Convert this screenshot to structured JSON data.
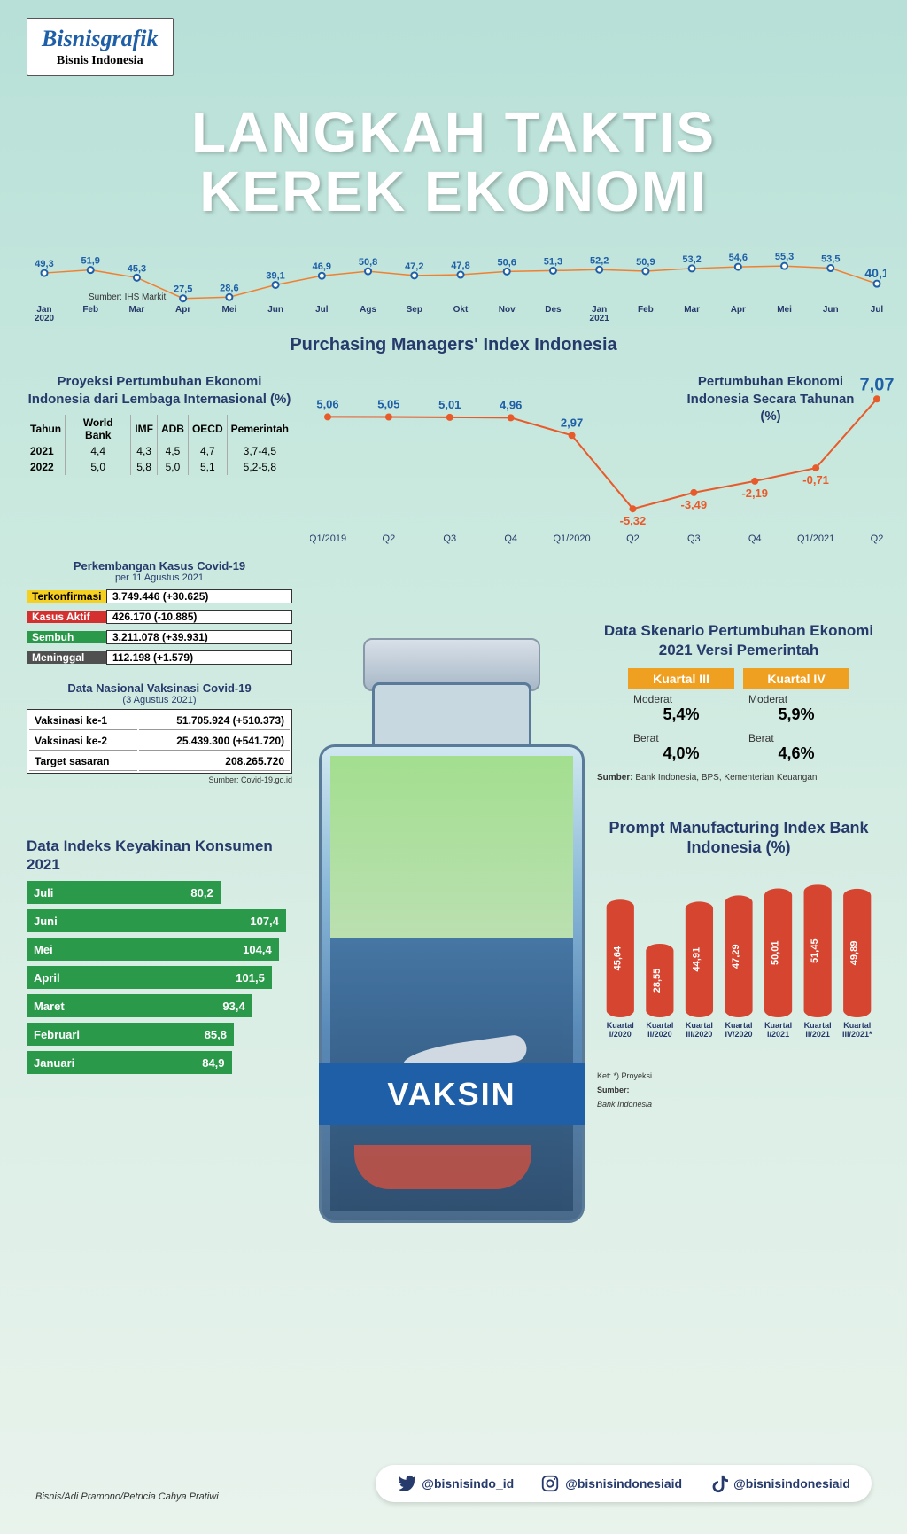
{
  "logo": {
    "brand": "Bisnisgrafik",
    "sub": "Bisnis Indonesia"
  },
  "title": {
    "line1": "LANGKAH TAKTIS",
    "line2": "KEREK EKONOMI"
  },
  "pmi": {
    "title": "Purchasing Managers' Index Indonesia",
    "source": "Sumber: IHS Markit",
    "labels": [
      "Jan\n2020",
      "Feb",
      "Mar",
      "Apr",
      "Mei",
      "Jun",
      "Jul",
      "Ags",
      "Sep",
      "Okt",
      "Nov",
      "Des",
      "Jan\n2021",
      "Feb",
      "Mar",
      "Apr",
      "Mei",
      "Jun",
      "Jul"
    ],
    "values": [
      49.3,
      51.9,
      45.3,
      27.5,
      28.6,
      39.1,
      46.9,
      50.8,
      47.2,
      47.8,
      50.6,
      51.3,
      52.2,
      50.9,
      53.2,
      54.6,
      55.3,
      53.5,
      40.1
    ],
    "line_color": "#f08030",
    "point_color": "#1e5fa8",
    "value_color": "#1e5fa8",
    "last_bold_color": "#1e5fa8",
    "value_fontsize": 11,
    "label_fontsize": 10,
    "ymin": 25,
    "ymax": 60
  },
  "proj": {
    "title": "Proyeksi Pertumbuhan Ekonomi Indonesia dari Lembaga Internasional (%)",
    "headers": [
      "Tahun",
      "World Bank",
      "IMF",
      "ADB",
      "OECD",
      "Pemerintah"
    ],
    "rows": [
      [
        "2021",
        "4,4",
        "4,3",
        "4,5",
        "4,7",
        "3,7-4,5"
      ],
      [
        "2022",
        "5,0",
        "5,8",
        "5,0",
        "5,1",
        "5,2-5,8"
      ]
    ]
  },
  "growth": {
    "title": "Pertumbuhan Ekonomi Indonesia Secara Tahunan (%)",
    "labels": [
      "Q1/2019",
      "Q2",
      "Q3",
      "Q4",
      "Q1/2020",
      "Q2",
      "Q3",
      "Q4",
      "Q1/2021",
      "Q2"
    ],
    "values": [
      5.06,
      5.05,
      5.01,
      4.96,
      2.97,
      -5.32,
      -3.49,
      -2.19,
      -0.71,
      7.07
    ],
    "line_color": "#e85a2a",
    "point_color": "#e85a2a",
    "pos_color": "#1e5fa8",
    "neg_color": "#e85a2a",
    "value_fontsize": 13,
    "label_fontsize": 11,
    "ymin": -7,
    "ymax": 8
  },
  "covid": {
    "title": "Perkembangan Kasus Covid-19",
    "sub": "per 11 Agustus 2021",
    "rows": [
      {
        "label": "Terkonfirmasi",
        "value": "3.749.446 (+30.625)",
        "color": "#f5d020",
        "text": "#000"
      },
      {
        "label": "Kasus Aktif",
        "value": "426.170 (-10.885)",
        "color": "#d43030",
        "text": "#fff"
      },
      {
        "label": "Sembuh",
        "value": "3.211.078 (+39.931)",
        "color": "#2a9a4a",
        "text": "#fff"
      },
      {
        "label": "Meninggal",
        "value": "112.198 (+1.579)",
        "color": "#505050",
        "text": "#fff"
      }
    ]
  },
  "vax": {
    "title": "Data Nasional Vaksinasi Covid-19",
    "sub": "(3 Agustus 2021)",
    "source": "Sumber: Covid-19.go.id",
    "rows": [
      [
        "Vaksinasi ke-1",
        "51.705.924 (+510.373)"
      ],
      [
        "Vaksinasi ke-2",
        "25.439.300 (+541.720)"
      ],
      [
        "Target sasaran",
        "208.265.720"
      ]
    ]
  },
  "ikk": {
    "title": "Data Indeks Keyakinan Konsumen 2021",
    "color": "#2a9a4a",
    "max": 110,
    "value_fontsize": 13,
    "rows": [
      {
        "label": "Juli",
        "value": 80.2,
        "disp": "80,2"
      },
      {
        "label": "Juni",
        "value": 107.4,
        "disp": "107,4"
      },
      {
        "label": "Mei",
        "value": 104.4,
        "disp": "104,4"
      },
      {
        "label": "April",
        "value": 101.5,
        "disp": "101,5"
      },
      {
        "label": "Maret",
        "value": 93.4,
        "disp": "93,4"
      },
      {
        "label": "Februari",
        "value": 85.8,
        "disp": "85,8"
      },
      {
        "label": "Januari",
        "value": 84.9,
        "disp": "84,9"
      }
    ]
  },
  "scenario": {
    "title": "Data Skenario Pertumbuhan Ekonomi 2021 Versi Pemerintah",
    "cols": [
      {
        "head": "Kuartal III",
        "moderat": "5,4%",
        "berat": "4,0%"
      },
      {
        "head": "Kuartal IV",
        "moderat": "5,9%",
        "berat": "4,6%"
      }
    ],
    "lab_moderat": "Moderat",
    "lab_berat": "Berat",
    "head_color": "#f0a020",
    "source": "Sumber: Bank Indonesia, BPS, Kementerian Keuangan"
  },
  "pmi_bi": {
    "title": "Prompt Manufacturing Index Bank Indonesia (%)",
    "labels": [
      "Kuartal\nI/2020",
      "Kuartal\nII/2020",
      "Kuartal\nIII/2020",
      "Kuartal\nIV/2020",
      "Kuartal\nI/2021",
      "Kuartal\nII/2021",
      "Kuartal\nIII/2021*"
    ],
    "values": [
      45.64,
      28.55,
      44.91,
      47.29,
      50.01,
      51.45,
      49.89
    ],
    "bar_color": "#d64530",
    "value_color": "#ffffff",
    "value_fontsize": 11,
    "label_fontsize": 9,
    "ymax": 55,
    "note": "Ket: *) Proyeksi",
    "source": "Sumber: Bank Indonesia"
  },
  "bottle": {
    "label": "VAKSIN"
  },
  "social": {
    "items": [
      {
        "icon": "twitter",
        "handle": "@bisnisindo_id"
      },
      {
        "icon": "instagram",
        "handle": "@bisnisindonesiaid"
      },
      {
        "icon": "tiktok",
        "handle": "@bisnisindonesiaid"
      }
    ]
  },
  "credits": "Bisnis/Adi Pramono/Petricia Cahya Pratiwi"
}
